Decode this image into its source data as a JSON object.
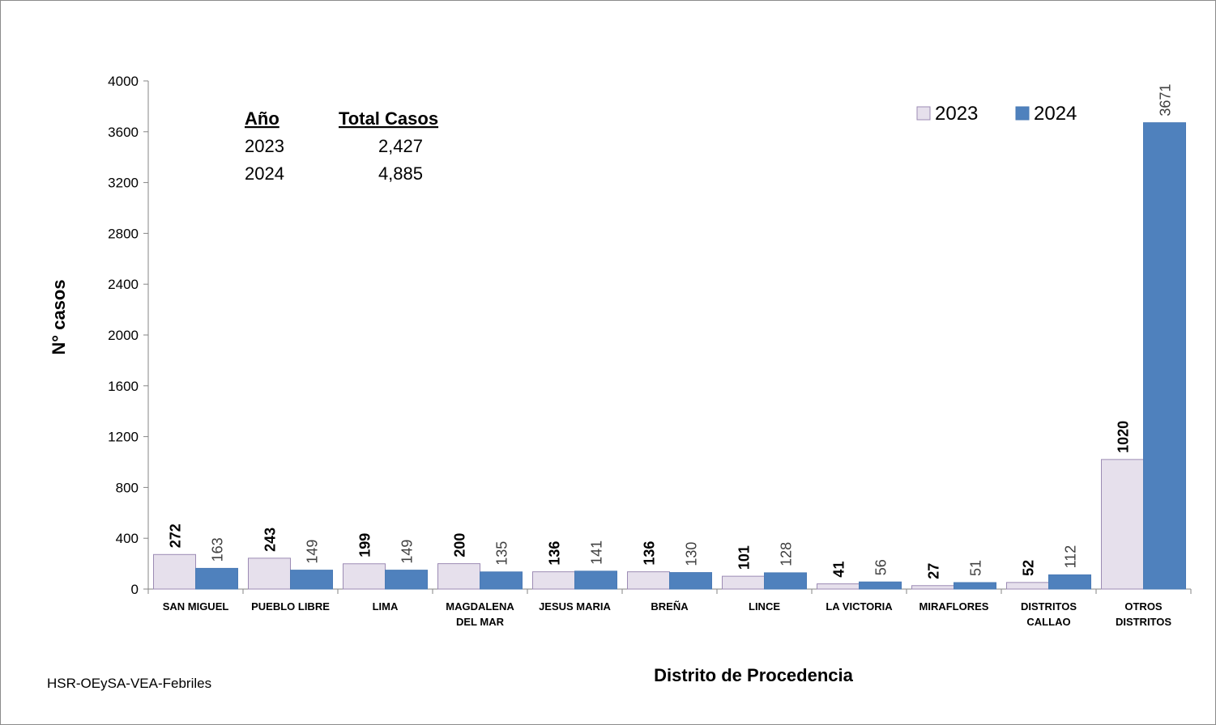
{
  "chart_data": {
    "type": "bar",
    "x_label": "Distrito de Procedencia",
    "y_label": "N° casos",
    "source": "HSR-OEySA-VEA-Febriles",
    "categories": [
      "SAN MIGUEL",
      "PUEBLO LIBRE",
      "LIMA",
      "MAGDALENA DEL MAR",
      "JESUS MARIA",
      "BREÑA",
      "LINCE",
      "LA VICTORIA",
      "MIRAFLORES",
      "DISTRITOS CALLAO",
      "OTROS DISTRITOS"
    ],
    "series": [
      {
        "name": "2023",
        "color": "#e6e0ec",
        "values": [
          272,
          243,
          199,
          200,
          136,
          136,
          101,
          41,
          27,
          52,
          1020
        ]
      },
      {
        "name": "2024",
        "color": "#4f81bd",
        "values": [
          163,
          149,
          149,
          135,
          141,
          130,
          128,
          56,
          51,
          112,
          3671
        ]
      }
    ],
    "ylim": [
      0,
      4000
    ],
    "yticks": [
      0,
      400,
      800,
      1200,
      1600,
      2000,
      2400,
      2800,
      3200,
      3600,
      4000
    ],
    "legend": "top-right",
    "summary_table": {
      "headers": [
        "Año",
        "Total Casos"
      ],
      "rows": [
        [
          "2023",
          "2,427"
        ],
        [
          "2024",
          "4,885"
        ]
      ]
    }
  }
}
